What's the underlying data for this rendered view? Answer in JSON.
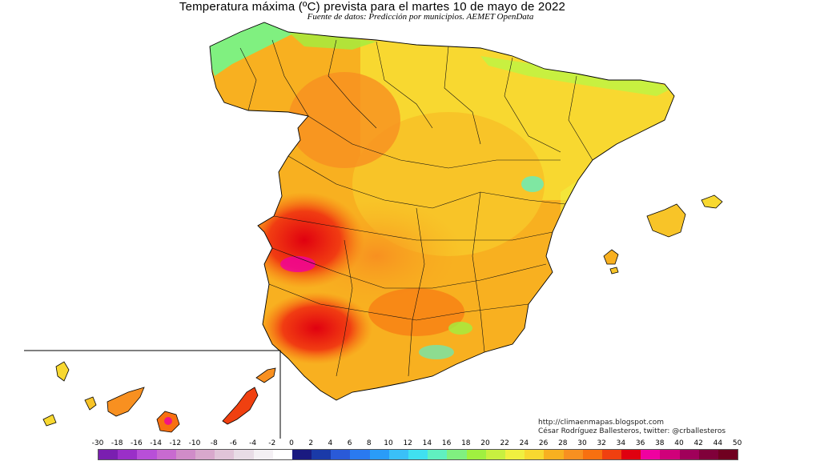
{
  "header": {
    "title": "Temperatura máxima (ºC) prevista para el martes 10 de mayo de 2022",
    "subtitle": "Fuente de datos: Predicción por municipios. AEMET OpenData"
  },
  "credits": {
    "line1": "http://climaenmapas.blogspot.com",
    "line2": "César Rodríguez Ballesteros, twitter: @crballesteros"
  },
  "legend": {
    "labels": [
      "-30",
      "-18",
      "-16",
      "-14",
      "-12",
      "-10",
      "-8",
      "-6",
      "-4",
      "-2",
      "0",
      "2",
      "4",
      "6",
      "8",
      "10",
      "12",
      "14",
      "16",
      "18",
      "20",
      "22",
      "24",
      "26",
      "28",
      "30",
      "32",
      "34",
      "36",
      "38",
      "40",
      "42",
      "44",
      "50"
    ],
    "colors": [
      "#7a1fb0",
      "#9a2fc8",
      "#b84fd8",
      "#c86ad0",
      "#d08cc8",
      "#d8a8cc",
      "#e0c4d8",
      "#e8dce6",
      "#f4f0f4",
      "#ffffff",
      "#1a1a80",
      "#1a3aa8",
      "#2a5ad8",
      "#2a7af0",
      "#2a9cf8",
      "#3ac0f8",
      "#40e0f0",
      "#60f0c0",
      "#80f080",
      "#a0f040",
      "#c8f040",
      "#f0f040",
      "#f8d830",
      "#f8b020",
      "#f89020",
      "#f87010",
      "#f04010",
      "#e00010",
      "#f000a0",
      "#d0007a",
      "#a0005a",
      "#80003a",
      "#700020"
    ]
  }
}
